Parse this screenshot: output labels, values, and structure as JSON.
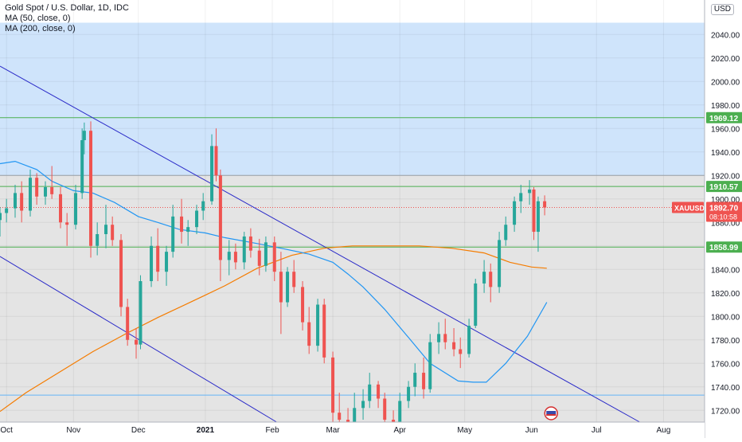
{
  "header": {
    "title": "Gold Spot / U.S. Dollar, 1D, IDC",
    "indicators": [
      "MA (50, close, 0)",
      "MA (200, close, 0)"
    ],
    "currency_button": "USD"
  },
  "price_scale": {
    "ticks": [
      "2040.00",
      "2020.00",
      "2000.00",
      "1980.00",
      "1960.00",
      "1940.00",
      "1920.00",
      "1900.00",
      "1880.00",
      "1860.00",
      "1840.00",
      "1820.00",
      "1800.00",
      "1780.00",
      "1760.00",
      "1740.00",
      "1720.00"
    ]
  },
  "tags": {
    "level_1969": "1969.12",
    "level_1910": "1910.57",
    "level_1858": "1858.99",
    "symbol": "XAUUSD",
    "last_price": "1892.70",
    "countdown": "08:10:58"
  },
  "time_axis": {
    "labels": [
      {
        "text": "Oct",
        "date": "2020-10-01"
      },
      {
        "text": "Nov",
        "date": "2020-11-01"
      },
      {
        "text": "Dec",
        "date": "2020-12-01"
      },
      {
        "text": "2021",
        "date": "2021-01-01"
      },
      {
        "text": "Feb",
        "date": "2021-02-01"
      },
      {
        "text": "Mar",
        "date": "2021-03-01"
      },
      {
        "text": "Apr",
        "date": "2021-04-01"
      },
      {
        "text": "May",
        "date": "2021-05-01"
      },
      {
        "text": "Jun",
        "date": "2021-06-01"
      },
      {
        "text": "Jul",
        "date": "2021-07-01"
      },
      {
        "text": "Aug",
        "date": "2021-08-01"
      }
    ]
  },
  "chart_data": {
    "type": "candlestick",
    "title": "Gold Spot / U.S. Dollar, 1D, IDC",
    "symbol": "XAUUSD",
    "x_range": [
      "2020-09-28",
      "2021-08-20"
    ],
    "ylim": [
      1710,
      2050
    ],
    "grid": true,
    "colors": {
      "up": "#26a69a",
      "down": "#ef5350",
      "ma50": "#2196f3",
      "ma200": "#f57c00",
      "channel": "#2929c8",
      "horizontal_levels": "#4caf50",
      "upper_zone": "#cfe4fb",
      "lower_zone": "#e4e4e4"
    },
    "zones": [
      {
        "from": 1920,
        "to": 2050,
        "color": "#cfe4fb"
      },
      {
        "from": 1710,
        "to": 1920,
        "color": "#e4e4e4"
      }
    ],
    "horizontal_levels": [
      {
        "price": 1969.12,
        "color": "#4caf50"
      },
      {
        "price": 1910.57,
        "color": "#4caf50"
      },
      {
        "price": 1858.99,
        "color": "#4caf50"
      },
      {
        "price": 1920.0,
        "color": "#9aa0a6"
      },
      {
        "price": 1733.0,
        "color": "#64b5f6"
      }
    ],
    "trendlines": [
      {
        "points": [
          [
            "2020-09-28",
            2013
          ],
          [
            "2021-07-21",
            1710
          ]
        ],
        "color": "#2929c8"
      },
      {
        "points": [
          [
            "2020-09-28",
            1851
          ],
          [
            "2021-02-03",
            1710
          ]
        ],
        "color": "#2929c8"
      }
    ],
    "ma50": [
      [
        "2020-09-28",
        1930
      ],
      [
        "2020-10-05",
        1932
      ],
      [
        "2020-10-15",
        1925
      ],
      [
        "2020-10-22",
        1915
      ],
      [
        "2020-11-01",
        1907
      ],
      [
        "2020-11-10",
        1905
      ],
      [
        "2020-11-20",
        1897
      ],
      [
        "2020-12-01",
        1885
      ],
      [
        "2020-12-10",
        1880
      ],
      [
        "2020-12-20",
        1874
      ],
      [
        "2021-01-01",
        1871
      ],
      [
        "2021-01-10",
        1867
      ],
      [
        "2021-01-25",
        1862
      ],
      [
        "2021-02-05",
        1858
      ],
      [
        "2021-02-18",
        1853
      ],
      [
        "2021-03-01",
        1846
      ],
      [
        "2021-03-08",
        1836
      ],
      [
        "2021-03-15",
        1825
      ],
      [
        "2021-03-25",
        1806
      ],
      [
        "2021-04-05",
        1782
      ],
      [
        "2021-04-15",
        1760
      ],
      [
        "2021-04-28",
        1745
      ],
      [
        "2021-05-05",
        1744
      ],
      [
        "2021-05-11",
        1744
      ],
      [
        "2021-05-20",
        1760
      ],
      [
        "2021-05-30",
        1783
      ],
      [
        "2021-06-08",
        1812
      ]
    ],
    "ma200": [
      [
        "2020-09-28",
        1719
      ],
      [
        "2020-10-10",
        1735
      ],
      [
        "2020-10-25",
        1752
      ],
      [
        "2020-11-10",
        1770
      ],
      [
        "2020-11-25",
        1785
      ],
      [
        "2020-12-10",
        1799
      ],
      [
        "2020-12-25",
        1812
      ],
      [
        "2021-01-10",
        1826
      ],
      [
        "2021-01-25",
        1841
      ],
      [
        "2021-02-10",
        1852
      ],
      [
        "2021-02-25",
        1858
      ],
      [
        "2021-03-10",
        1860
      ],
      [
        "2021-03-25",
        1860
      ],
      [
        "2021-04-10",
        1860
      ],
      [
        "2021-04-25",
        1858
      ],
      [
        "2021-05-10",
        1854
      ],
      [
        "2021-05-22",
        1846
      ],
      [
        "2021-06-01",
        1842
      ],
      [
        "2021-06-08",
        1841
      ]
    ],
    "candles": [
      {
        "d": "2020-09-28",
        "o": 1882,
        "h": 1893,
        "l": 1868,
        "c": 1888
      },
      {
        "d": "2020-10-01",
        "o": 1888,
        "h": 1900,
        "l": 1880,
        "c": 1892
      },
      {
        "d": "2020-10-05",
        "o": 1892,
        "h": 1912,
        "l": 1884,
        "c": 1905
      },
      {
        "d": "2020-10-08",
        "o": 1905,
        "h": 1915,
        "l": 1880,
        "c": 1890
      },
      {
        "d": "2020-10-12",
        "o": 1890,
        "h": 1925,
        "l": 1885,
        "c": 1918
      },
      {
        "d": "2020-10-15",
        "o": 1918,
        "h": 1922,
        "l": 1895,
        "c": 1902
      },
      {
        "d": "2020-10-19",
        "o": 1902,
        "h": 1915,
        "l": 1895,
        "c": 1910
      },
      {
        "d": "2020-10-22",
        "o": 1910,
        "h": 1928,
        "l": 1900,
        "c": 1904
      },
      {
        "d": "2020-10-26",
        "o": 1904,
        "h": 1910,
        "l": 1875,
        "c": 1880
      },
      {
        "d": "2020-10-29",
        "o": 1880,
        "h": 1888,
        "l": 1860,
        "c": 1878
      },
      {
        "d": "2020-11-02",
        "o": 1878,
        "h": 1912,
        "l": 1874,
        "c": 1905
      },
      {
        "d": "2020-11-05",
        "o": 1905,
        "h": 1960,
        "l": 1900,
        "c": 1950
      },
      {
        "d": "2020-11-06",
        "o": 1950,
        "h": 1965,
        "l": 1938,
        "c": 1958
      },
      {
        "d": "2020-11-09",
        "o": 1958,
        "h": 1966,
        "l": 1850,
        "c": 1860
      },
      {
        "d": "2020-11-12",
        "o": 1860,
        "h": 1880,
        "l": 1852,
        "c": 1870
      },
      {
        "d": "2020-11-16",
        "o": 1870,
        "h": 1895,
        "l": 1858,
        "c": 1878
      },
      {
        "d": "2020-11-19",
        "o": 1878,
        "h": 1885,
        "l": 1860,
        "c": 1865
      },
      {
        "d": "2020-11-23",
        "o": 1865,
        "h": 1870,
        "l": 1800,
        "c": 1808
      },
      {
        "d": "2020-11-26",
        "o": 1808,
        "h": 1815,
        "l": 1775,
        "c": 1780
      },
      {
        "d": "2020-11-30",
        "o": 1780,
        "h": 1790,
        "l": 1764,
        "c": 1776
      },
      {
        "d": "2020-12-02",
        "o": 1776,
        "h": 1835,
        "l": 1772,
        "c": 1830
      },
      {
        "d": "2020-12-07",
        "o": 1830,
        "h": 1868,
        "l": 1825,
        "c": 1860
      },
      {
        "d": "2020-12-10",
        "o": 1860,
        "h": 1875,
        "l": 1830,
        "c": 1838
      },
      {
        "d": "2020-12-14",
        "o": 1838,
        "h": 1860,
        "l": 1826,
        "c": 1855
      },
      {
        "d": "2020-12-17",
        "o": 1855,
        "h": 1895,
        "l": 1850,
        "c": 1885
      },
      {
        "d": "2020-12-21",
        "o": 1885,
        "h": 1900,
        "l": 1862,
        "c": 1872
      },
      {
        "d": "2020-12-24",
        "o": 1872,
        "h": 1882,
        "l": 1860,
        "c": 1876
      },
      {
        "d": "2020-12-28",
        "o": 1876,
        "h": 1895,
        "l": 1870,
        "c": 1890
      },
      {
        "d": "2020-12-31",
        "o": 1890,
        "h": 1905,
        "l": 1882,
        "c": 1898
      },
      {
        "d": "2021-01-04",
        "o": 1898,
        "h": 1955,
        "l": 1895,
        "c": 1945
      },
      {
        "d": "2021-01-06",
        "o": 1945,
        "h": 1960,
        "l": 1915,
        "c": 1920
      },
      {
        "d": "2021-01-08",
        "o": 1920,
        "h": 1925,
        "l": 1830,
        "c": 1848
      },
      {
        "d": "2021-01-12",
        "o": 1848,
        "h": 1865,
        "l": 1835,
        "c": 1855
      },
      {
        "d": "2021-01-15",
        "o": 1855,
        "h": 1862,
        "l": 1840,
        "c": 1846
      },
      {
        "d": "2021-01-19",
        "o": 1846,
        "h": 1872,
        "l": 1840,
        "c": 1868
      },
      {
        "d": "2021-01-22",
        "o": 1868,
        "h": 1875,
        "l": 1850,
        "c": 1856
      },
      {
        "d": "2021-01-26",
        "o": 1856,
        "h": 1866,
        "l": 1835,
        "c": 1843
      },
      {
        "d": "2021-01-29",
        "o": 1843,
        "h": 1868,
        "l": 1838,
        "c": 1863
      },
      {
        "d": "2021-02-02",
        "o": 1863,
        "h": 1868,
        "l": 1830,
        "c": 1838
      },
      {
        "d": "2021-02-05",
        "o": 1838,
        "h": 1855,
        "l": 1785,
        "c": 1812
      },
      {
        "d": "2021-02-08",
        "o": 1812,
        "h": 1842,
        "l": 1808,
        "c": 1838
      },
      {
        "d": "2021-02-11",
        "o": 1838,
        "h": 1848,
        "l": 1820,
        "c": 1825
      },
      {
        "d": "2021-02-15",
        "o": 1825,
        "h": 1830,
        "l": 1788,
        "c": 1795
      },
      {
        "d": "2021-02-18",
        "o": 1795,
        "h": 1808,
        "l": 1768,
        "c": 1775
      },
      {
        "d": "2021-02-22",
        "o": 1775,
        "h": 1815,
        "l": 1770,
        "c": 1810
      },
      {
        "d": "2021-02-25",
        "o": 1810,
        "h": 1815,
        "l": 1760,
        "c": 1765
      },
      {
        "d": "2021-03-01",
        "o": 1765,
        "h": 1770,
        "l": 1700,
        "c": 1718
      },
      {
        "d": "2021-03-04",
        "o": 1718,
        "h": 1735,
        "l": 1700,
        "c": 1712
      },
      {
        "d": "2021-03-08",
        "o": 1712,
        "h": 1722,
        "l": 1676,
        "c": 1690
      },
      {
        "d": "2021-03-11",
        "o": 1690,
        "h": 1735,
        "l": 1688,
        "c": 1722
      },
      {
        "d": "2021-03-15",
        "o": 1722,
        "h": 1738,
        "l": 1712,
        "c": 1728
      },
      {
        "d": "2021-03-18",
        "o": 1728,
        "h": 1752,
        "l": 1722,
        "c": 1742
      },
      {
        "d": "2021-03-22",
        "o": 1742,
        "h": 1745,
        "l": 1722,
        "c": 1730
      },
      {
        "d": "2021-03-25",
        "o": 1730,
        "h": 1735,
        "l": 1705,
        "c": 1712
      },
      {
        "d": "2021-03-29",
        "o": 1712,
        "h": 1720,
        "l": 1678,
        "c": 1688
      },
      {
        "d": "2021-04-01",
        "o": 1688,
        "h": 1735,
        "l": 1682,
        "c": 1728
      },
      {
        "d": "2021-04-05",
        "o": 1728,
        "h": 1745,
        "l": 1722,
        "c": 1740
      },
      {
        "d": "2021-04-08",
        "o": 1740,
        "h": 1760,
        "l": 1732,
        "c": 1752
      },
      {
        "d": "2021-04-12",
        "o": 1752,
        "h": 1765,
        "l": 1730,
        "c": 1738
      },
      {
        "d": "2021-04-15",
        "o": 1738,
        "h": 1785,
        "l": 1735,
        "c": 1778
      },
      {
        "d": "2021-04-19",
        "o": 1778,
        "h": 1795,
        "l": 1768,
        "c": 1785
      },
      {
        "d": "2021-04-22",
        "o": 1785,
        "h": 1798,
        "l": 1772,
        "c": 1778
      },
      {
        "d": "2021-04-26",
        "o": 1778,
        "h": 1790,
        "l": 1766,
        "c": 1772
      },
      {
        "d": "2021-04-29",
        "o": 1772,
        "h": 1782,
        "l": 1756,
        "c": 1768
      },
      {
        "d": "2021-05-03",
        "o": 1768,
        "h": 1798,
        "l": 1765,
        "c": 1792
      },
      {
        "d": "2021-05-06",
        "o": 1792,
        "h": 1832,
        "l": 1790,
        "c": 1828
      },
      {
        "d": "2021-05-10",
        "o": 1828,
        "h": 1848,
        "l": 1820,
        "c": 1838
      },
      {
        "d": "2021-05-13",
        "o": 1838,
        "h": 1845,
        "l": 1812,
        "c": 1825
      },
      {
        "d": "2021-05-17",
        "o": 1825,
        "h": 1872,
        "l": 1820,
        "c": 1865
      },
      {
        "d": "2021-05-20",
        "o": 1865,
        "h": 1885,
        "l": 1860,
        "c": 1878
      },
      {
        "d": "2021-05-24",
        "o": 1878,
        "h": 1902,
        "l": 1872,
        "c": 1898
      },
      {
        "d": "2021-05-27",
        "o": 1898,
        "h": 1912,
        "l": 1888,
        "c": 1905
      },
      {
        "d": "2021-05-31",
        "o": 1905,
        "h": 1916,
        "l": 1895,
        "c": 1908
      },
      {
        "d": "2021-06-02",
        "o": 1908,
        "h": 1910,
        "l": 1865,
        "c": 1872
      },
      {
        "d": "2021-06-04",
        "o": 1872,
        "h": 1902,
        "l": 1855,
        "c": 1898
      },
      {
        "d": "2021-06-07",
        "o": 1898,
        "h": 1903,
        "l": 1886,
        "c": 1892.7
      }
    ]
  }
}
